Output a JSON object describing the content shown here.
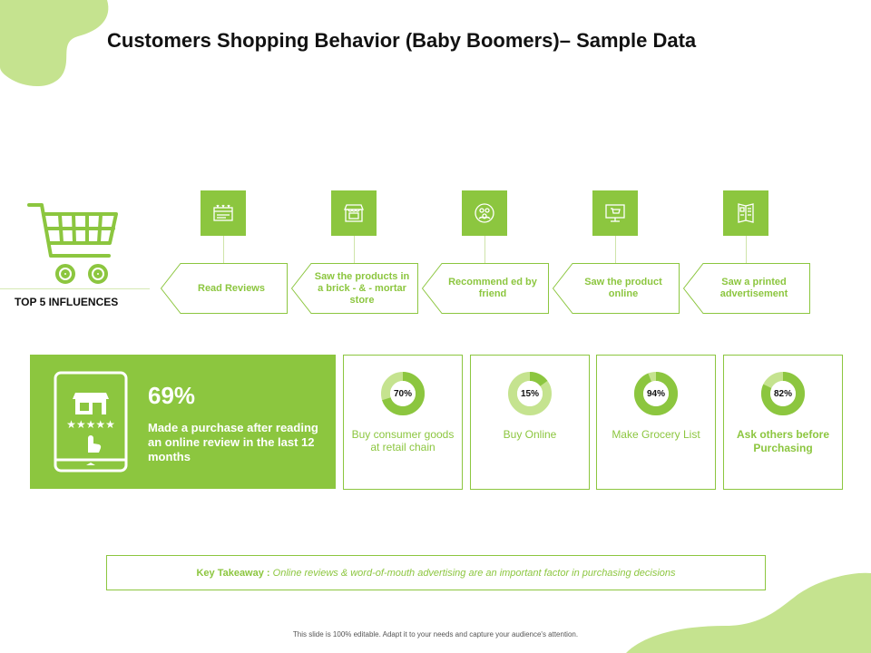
{
  "title": "Customers Shopping Behavior (Baby Boomers)– Sample Data",
  "colors": {
    "accent": "#8cc63f",
    "accent_light": "#c5e38f",
    "text_dark": "#111111"
  },
  "influences": {
    "heading": "TOP 5 INFLUENCES",
    "items": [
      {
        "label": "Read Reviews",
        "icon": "reviews-icon"
      },
      {
        "label": "Saw the products in a brick - & - mortar store",
        "icon": "storefront-icon"
      },
      {
        "label": "Recommend ed by friend",
        "icon": "friends-icon"
      },
      {
        "label": "Saw the product online",
        "icon": "monitor-cart-icon"
      },
      {
        "label": "Saw a printed advertisement",
        "icon": "brochure-icon"
      }
    ]
  },
  "highlight": {
    "percent": "69%",
    "text": "Made a purchase after reading an online review in the last 12 months"
  },
  "stats": [
    {
      "value": 70,
      "percent_label": "70%",
      "label": "Buy consumer goods at retail chain"
    },
    {
      "value": 15,
      "percent_label": "15%",
      "label": "Buy Online"
    },
    {
      "value": 94,
      "percent_label": "94%",
      "label": "Make Grocery List"
    },
    {
      "value": 82,
      "percent_label": "82%",
      "label": "Ask others before Purchasing"
    }
  ],
  "takeaway": {
    "key": "Key Takeaway :",
    "text": "Online reviews & word-of-mouth advertising are an important factor in purchasing decisions"
  },
  "footer": "This slide is 100% editable. Adapt it to your needs and capture your audience's attention."
}
